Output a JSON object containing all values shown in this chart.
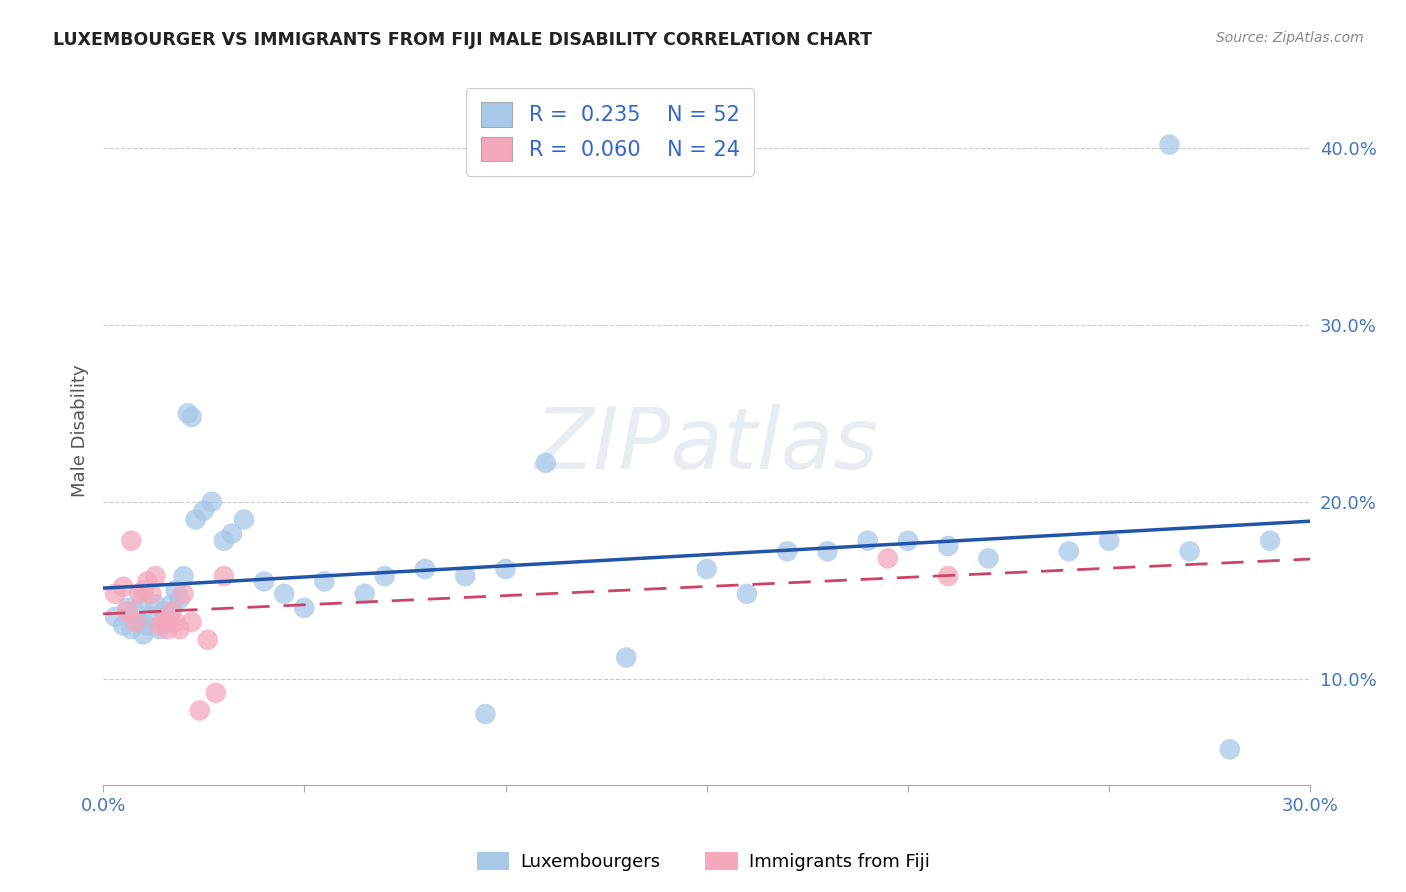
{
  "title": "LUXEMBOURGER VS IMMIGRANTS FROM FIJI MALE DISABILITY CORRELATION CHART",
  "source": "Source: ZipAtlas.com",
  "ylabel": "Male Disability",
  "xlim": [
    0.0,
    0.3
  ],
  "ylim": [
    0.04,
    0.44
  ],
  "legend_blue_r": "0.235",
  "legend_blue_n": "52",
  "legend_pink_r": "0.060",
  "legend_pink_n": "24",
  "legend_label_blue": "Luxembourgers",
  "legend_label_pink": "Immigrants from Fiji",
  "blue_color": "#a8c8e8",
  "pink_color": "#f4a8bc",
  "line_blue_color": "#2255aa",
  "line_pink_color": "#cc4466",
  "blue_x": [
    0.003,
    0.005,
    0.006,
    0.007,
    0.008,
    0.009,
    0.01,
    0.01,
    0.011,
    0.012,
    0.013,
    0.014,
    0.015,
    0.016,
    0.017,
    0.018,
    0.019,
    0.02,
    0.021,
    0.022,
    0.023,
    0.025,
    0.027,
    0.03,
    0.032,
    0.035,
    0.04,
    0.045,
    0.05,
    0.055,
    0.065,
    0.07,
    0.08,
    0.09,
    0.095,
    0.1,
    0.11,
    0.13,
    0.15,
    0.16,
    0.17,
    0.18,
    0.19,
    0.2,
    0.21,
    0.22,
    0.24,
    0.25,
    0.265,
    0.27,
    0.28,
    0.29
  ],
  "blue_y": [
    0.135,
    0.13,
    0.14,
    0.128,
    0.138,
    0.132,
    0.125,
    0.145,
    0.13,
    0.135,
    0.142,
    0.128,
    0.138,
    0.132,
    0.142,
    0.15,
    0.145,
    0.158,
    0.25,
    0.248,
    0.19,
    0.195,
    0.2,
    0.178,
    0.182,
    0.19,
    0.155,
    0.148,
    0.14,
    0.155,
    0.148,
    0.158,
    0.162,
    0.158,
    0.08,
    0.162,
    0.222,
    0.112,
    0.162,
    0.148,
    0.172,
    0.172,
    0.178,
    0.178,
    0.175,
    0.168,
    0.172,
    0.178,
    0.402,
    0.172,
    0.06,
    0.178
  ],
  "pink_x": [
    0.003,
    0.005,
    0.006,
    0.007,
    0.008,
    0.009,
    0.01,
    0.011,
    0.012,
    0.013,
    0.014,
    0.015,
    0.016,
    0.017,
    0.018,
    0.019,
    0.02,
    0.022,
    0.024,
    0.026,
    0.028,
    0.03,
    0.195,
    0.21
  ],
  "pink_y": [
    0.148,
    0.152,
    0.138,
    0.178,
    0.132,
    0.148,
    0.15,
    0.155,
    0.148,
    0.158,
    0.13,
    0.132,
    0.128,
    0.138,
    0.132,
    0.128,
    0.148,
    0.132,
    0.082,
    0.122,
    0.092,
    0.158,
    0.168,
    0.158
  ]
}
